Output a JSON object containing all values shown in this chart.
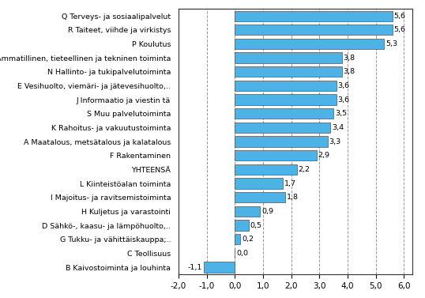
{
  "categories": [
    "B Kaivostoiminta ja louhinta",
    "C Teollisuus",
    "G Tukku- ja vähittäiskauppa;..",
    "D Sähkö-, kaasu- ja lämpöhuolto,..",
    "H Kuljetus ja varastointi",
    "I Majoitus- ja ravitsemistoiminta",
    "L Kiinteistöalan toiminta",
    "YHTEENSÄ",
    "F Rakentaminen",
    "A Maatalous, metsätalous ja kalatalous",
    "K Rahoitus- ja vakuutustoiminta",
    "S Muu palvelutoiminta",
    "J Informaatio ja viestin tä",
    "E Vesihuolto, viemäri- ja jätevesihuolto,..",
    "N Hallinto- ja tukipalvelutoiminta",
    "M Ammatillinen, tieteellinen ja tekninen toiminta",
    "P Koulutus",
    "R Taiteet, viihde ja virkistys",
    "Q Terveys- ja sosiaalipalvelut"
  ],
  "values": [
    -1.1,
    0.0,
    0.2,
    0.5,
    0.9,
    1.8,
    1.7,
    2.2,
    2.9,
    3.3,
    3.4,
    3.5,
    3.6,
    3.6,
    3.8,
    3.8,
    5.3,
    5.6,
    5.6
  ],
  "bar_color": "#4db3e6",
  "value_labels": [
    "-1,1",
    "0,0",
    "0,2",
    "0,5",
    "0,9",
    "1,8",
    "1,7",
    "2,2",
    "2,9",
    "3,3",
    "3,4",
    "3,5",
    "3,6",
    "3,6",
    "3,8",
    "3,8",
    "5,3",
    "5,6",
    "5,6"
  ],
  "xlim": [
    -2.0,
    6.3
  ],
  "xticks": [
    -2.0,
    -1.0,
    0.0,
    1.0,
    2.0,
    3.0,
    4.0,
    5.0,
    6.0
  ],
  "xtick_labels": [
    "-2,0",
    "-1,0",
    "0,0",
    "1,0",
    "2,0",
    "3,0",
    "4,0",
    "5,0",
    "6,0"
  ],
  "dashed_lines": [
    -1.0,
    1.0,
    2.0,
    3.0,
    4.0,
    5.0,
    6.0
  ],
  "zero_line": 0.0,
  "label_fontsize": 6.8,
  "tick_fontsize": 7.5,
  "value_fontsize": 6.8,
  "bar_height": 0.75,
  "background_color": "#f0f0f0"
}
